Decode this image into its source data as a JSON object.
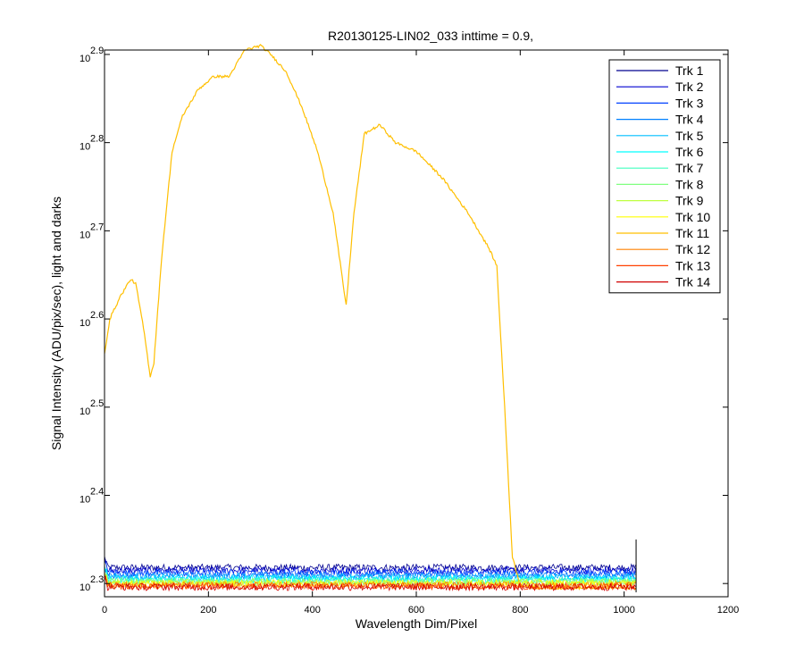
{
  "chart_data": {
    "type": "line",
    "title": "R20130125-LIN02_033 inttime = 0.9,",
    "xlabel": "Wavelength Dim/Pixel",
    "ylabel": "Signal Intensity (ADU/pix/sec), light and darks",
    "xlim": [
      0,
      1200
    ],
    "ylim_exponent": [
      2.285,
      2.905
    ],
    "y_scale": "log10",
    "x_ticks": [
      "0",
      "200",
      "400",
      "600",
      "800",
      "1000",
      "1200"
    ],
    "x_tick_values": [
      0,
      200,
      400,
      600,
      800,
      1000,
      1200
    ],
    "y_tick_base": "10",
    "y_ticks": [
      "2.3",
      "2.4",
      "2.5",
      "2.6",
      "2.7",
      "2.8",
      "2.9"
    ],
    "y_tick_values": [
      2.3,
      2.4,
      2.5,
      2.6,
      2.7,
      2.8,
      2.9
    ],
    "legend_position": "top-right",
    "grid": false,
    "series": [
      {
        "name": "Trk 1",
        "color": "#00008f",
        "level": 2.318,
        "noise": 0.004
      },
      {
        "name": "Trk 2",
        "color": "#0000d0",
        "level": 2.315,
        "noise": 0.004
      },
      {
        "name": "Trk 3",
        "color": "#0040ff",
        "level": 2.312,
        "noise": 0.004
      },
      {
        "name": "Trk 4",
        "color": "#0080ff",
        "level": 2.309,
        "noise": 0.004
      },
      {
        "name": "Trk 5",
        "color": "#00bfff",
        "level": 2.307,
        "noise": 0.004
      },
      {
        "name": "Trk 6",
        "color": "#00ffff",
        "level": 2.305,
        "noise": 0.004
      },
      {
        "name": "Trk 7",
        "color": "#40ffbf",
        "level": 2.303,
        "noise": 0.004
      },
      {
        "name": "Trk 8",
        "color": "#80ff80",
        "level": 2.302,
        "noise": 0.004
      },
      {
        "name": "Trk 9",
        "color": "#bfff40",
        "level": 2.301,
        "noise": 0.004
      },
      {
        "name": "Trk 10",
        "color": "#ffff00",
        "level": 2.3,
        "noise": 0.004
      },
      {
        "name": "Trk 11",
        "color": "#ffbf00",
        "x": [
          0,
          10,
          30,
          50,
          60,
          75,
          88,
          95,
          110,
          130,
          150,
          180,
          210,
          240,
          250,
          270,
          300,
          320,
          350,
          380,
          410,
          440,
          465,
          480,
          500,
          530,
          560,
          600,
          650,
          700,
          740,
          755,
          770,
          785,
          800,
          830,
          1023
        ],
        "y": [
          2.56,
          2.6,
          2.625,
          2.645,
          2.64,
          2.59,
          2.535,
          2.55,
          2.67,
          2.79,
          2.83,
          2.86,
          2.875,
          2.875,
          2.885,
          2.905,
          2.91,
          2.9,
          2.88,
          2.84,
          2.79,
          2.72,
          2.615,
          2.72,
          2.81,
          2.82,
          2.8,
          2.79,
          2.76,
          2.72,
          2.68,
          2.66,
          2.5,
          2.33,
          2.298,
          2.295,
          2.295
        ]
      },
      {
        "name": "Trk 12",
        "color": "#ff8000",
        "level": 2.298,
        "noise": 0.004
      },
      {
        "name": "Trk 13",
        "color": "#ff4000",
        "level": 2.297,
        "noise": 0.004
      },
      {
        "name": "Trk 14",
        "color": "#d00000",
        "level": 2.296,
        "noise": 0.004
      }
    ]
  }
}
